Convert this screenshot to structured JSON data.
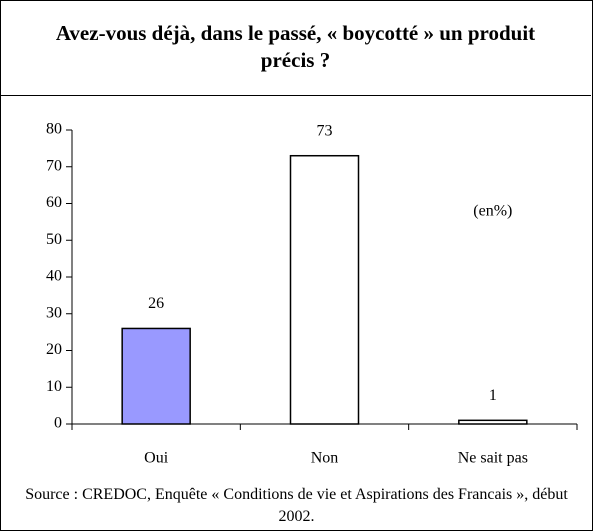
{
  "chart_data": {
    "type": "bar",
    "title": "Avez-vous déjà, dans le passé, « boycotté » un produit précis ?",
    "categories": [
      "Oui",
      "Non",
      "Ne sait pas"
    ],
    "values": [
      26,
      73,
      1
    ],
    "colors": [
      "#9999ff",
      "#ffffff",
      "#ffffff"
    ],
    "annotation": "(en%)",
    "source": "Source : CREDOC, Enquête « Conditions de vie et Aspirations des Francais », début 2002.",
    "ylim": [
      0,
      80
    ],
    "yticks": [
      0,
      10,
      20,
      30,
      40,
      50,
      60,
      70,
      80
    ],
    "grid": false
  }
}
